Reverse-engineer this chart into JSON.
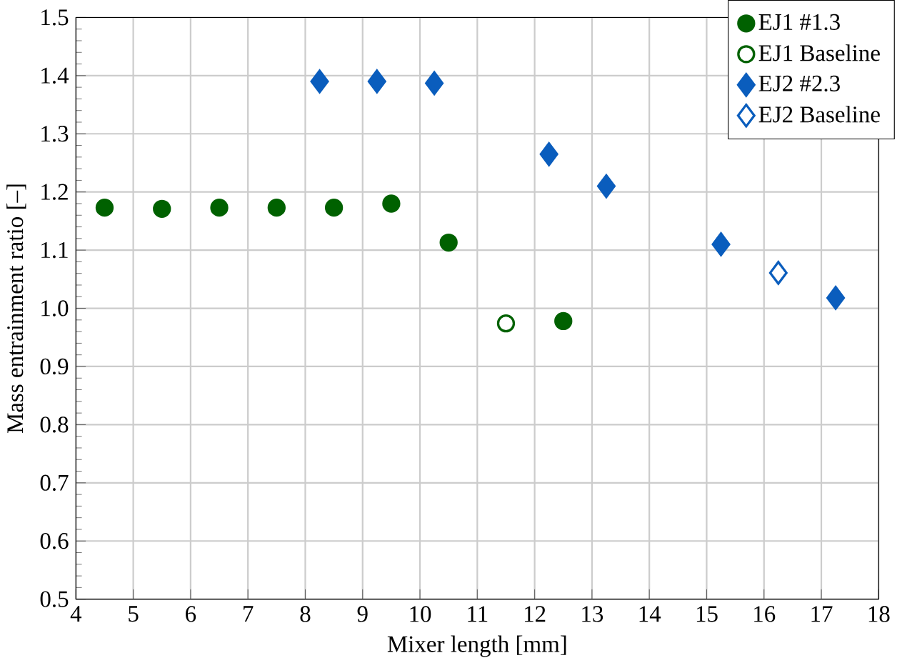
{
  "chart_data": {
    "type": "scatter",
    "xlabel": "Mixer length [mm]",
    "ylabel": "Mass entrainment ratio [–]",
    "xlim": [
      4,
      18
    ],
    "xticks": [
      4,
      5,
      6,
      7,
      8,
      9,
      10,
      11,
      12,
      13,
      14,
      15,
      16,
      17,
      18
    ],
    "ylim": [
      0.5,
      1.5
    ],
    "yticks": [
      0.5,
      0.6,
      0.7,
      0.8,
      0.9,
      {
        "value": 1.0,
        "label": "1.0"
      },
      1.1,
      1.2,
      1.3,
      1.4,
      1.5
    ],
    "grid": true,
    "legend": "top right",
    "series": [
      {
        "name": "EJ1 #1.3",
        "color": "#006100",
        "marker": "circle",
        "x": [
          4.5,
          5.5,
          6.5,
          7.5,
          8.5,
          9.5,
          10.5,
          12.5
        ],
        "values": [
          1.173,
          1.171,
          1.173,
          1.173,
          1.173,
          1.18,
          1.113,
          0.978
        ]
      },
      {
        "name": "EJ1 Baseline",
        "color": "#006100",
        "marker": "circle",
        "x": [
          11.5
        ],
        "values": [
          0.974
        ]
      },
      {
        "name": "EJ2 #2.3",
        "color": "#0a5dbd",
        "marker": "diamond",
        "x": [
          8.25,
          9.25,
          10.25,
          12.25,
          13.25,
          15.25,
          17.25
        ],
        "values": [
          1.39,
          1.39,
          1.387,
          1.265,
          1.21,
          1.11,
          1.018
        ]
      },
      {
        "name": "EJ2 Baseline",
        "color": "#0a5dbd",
        "marker": "diamond",
        "x": [
          16.25
        ],
        "values": [
          1.061
        ]
      }
    ]
  }
}
